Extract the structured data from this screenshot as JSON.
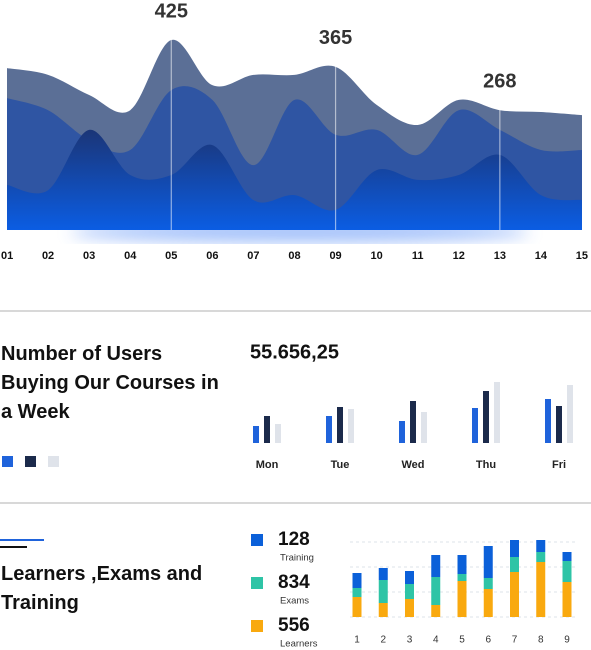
{
  "chart_data": [
    {
      "type": "area",
      "categories": [
        "01",
        "02",
        "03",
        "04",
        "05",
        "06",
        "07",
        "08",
        "09",
        "10",
        "11",
        "12",
        "13",
        "14",
        "15"
      ],
      "ylim": [
        0,
        500
      ],
      "series": [
        {
          "color": "#5b6f96",
          "values": [
            362,
            347,
            302,
            268,
            425,
            324,
            347,
            347,
            365,
            280,
            235,
            291,
            268,
            264,
            257
          ],
          "value_labels": [
            null,
            null,
            null,
            null,
            "425",
            null,
            null,
            null,
            "365",
            null,
            null,
            null,
            "268",
            null,
            null
          ]
        },
        {
          "color": "#2f55a3",
          "values": [
            295,
            268,
            201,
            179,
            313,
            291,
            145,
            291,
            213,
            224,
            168,
            268,
            224,
            179,
            179
          ]
        },
        {
          "color": "#1b3577",
          "values": [
            101,
            89,
            224,
            123,
            123,
            190,
            67,
            78,
            45,
            134,
            112,
            123,
            168,
            78,
            67
          ]
        }
      ]
    },
    {
      "type": "bar",
      "title": "Number of Users Buying Our Courses in a Week",
      "subtitle": "55.656,25",
      "categories": [
        "Mon",
        "Tue",
        "Wed",
        "Thu",
        "Fri"
      ],
      "ylim": [
        0,
        70
      ],
      "series": [
        {
          "color": "#1f63db",
          "values": [
            17,
            27,
            22,
            35,
            44
          ]
        },
        {
          "color": "#1b2a4b",
          "values": [
            27,
            36,
            42,
            52,
            37
          ]
        },
        {
          "color": "#dfe3ea",
          "values": [
            19,
            34,
            31,
            61,
            58
          ]
        }
      ]
    },
    {
      "type": "stacked_bar",
      "title": "Learners ,Exams and Training",
      "categories": [
        "1",
        "2",
        "3",
        "4",
        "5",
        "6",
        "7",
        "8",
        "9"
      ],
      "ylim": [
        0,
        80
      ],
      "series": [
        {
          "name": "Training",
          "total": 128,
          "color": "#0b60d9",
          "values": [
            15,
            12,
            13,
            22,
            19,
            32,
            17,
            12,
            9
          ]
        },
        {
          "name": "Exams",
          "total": 834,
          "color": "#2ec4a6",
          "values": [
            9,
            23,
            15,
            28,
            7,
            11,
            15,
            10,
            21
          ]
        },
        {
          "name": "Learners",
          "total": 556,
          "color": "#f9a90f",
          "values": [
            20,
            14,
            18,
            12,
            36,
            28,
            45,
            55,
            35
          ]
        }
      ]
    }
  ]
}
